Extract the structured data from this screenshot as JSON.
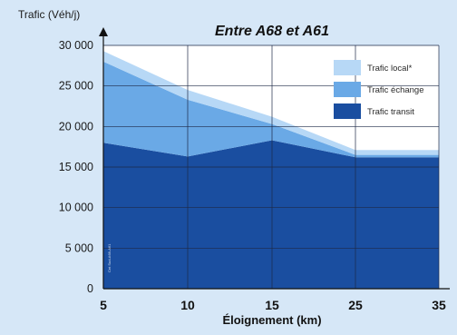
{
  "chart_data": {
    "type": "area",
    "title": "Entre A68 et A61",
    "ylabel": "Trafic (Véh/j)",
    "xlabel": "Éloignement (km)",
    "x": [
      "5",
      "10",
      "15",
      "25",
      "35"
    ],
    "ylim": [
      0,
      30000
    ],
    "yticks": [
      "0",
      "5 000",
      "10 000",
      "15 000",
      "20 000",
      "25 000",
      "30 000"
    ],
    "series": [
      {
        "name": "Trafic transit",
        "values": [
          18000,
          16300,
          18300,
          16200,
          16200
        ]
      },
      {
        "name": "Trafic échange",
        "values": [
          10000,
          7000,
          2000,
          300,
          300
        ]
      },
      {
        "name": "Trafic local*",
        "values": [
          1300,
          1200,
          900,
          600,
          600
        ]
      }
    ],
    "legend_position": "top-right",
    "grid": true,
    "colors": {
      "Trafic transit": "#1a4ea0",
      "Trafic échange": "#6aa9e6",
      "Trafic local*": "#b7d8f6",
      "page_background": "#d6e7f7",
      "plot_background": "#ffffff"
    },
    "watermark": "Cet Sud-A68-A61"
  }
}
